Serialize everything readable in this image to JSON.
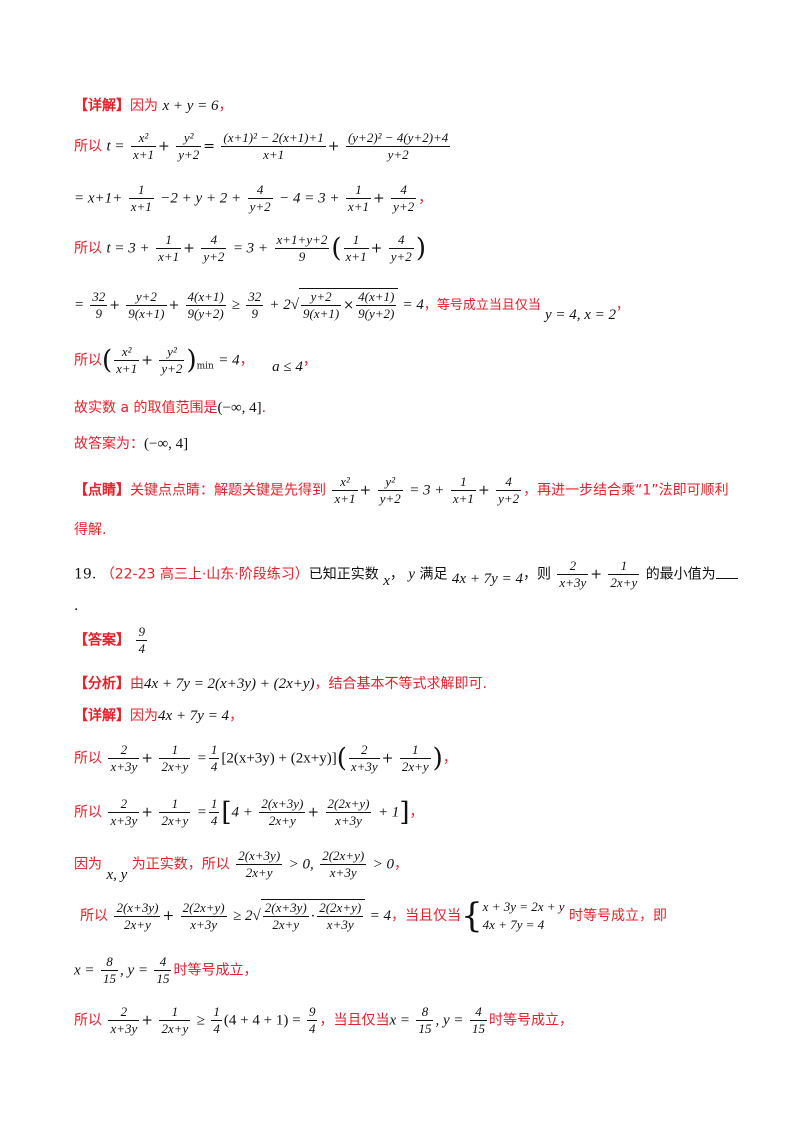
{
  "part1": {
    "detail_tag": "【详解】",
    "because": "因为",
    "cond": "x + y = 6",
    "so": "所以",
    "t_eq": "t =",
    "f1n": "x²",
    "f1d": "x+1",
    "f2n": "y²",
    "f2d": "y+2",
    "f3n": "(x+1)² − 2(x+1)+1",
    "f3d": "x+1",
    "f4n": "(y+2)² − 4(y+2)+4",
    "f4d": "y+2",
    "line3_a": "= x+1+",
    "f5n": "1",
    "f5d": "x+1",
    "line3_b": "−2 + y + 2 +",
    "f6n": "4",
    "f6d": "y+2",
    "line3_c": "− 4 = 3 +",
    "f7n": "1",
    "f7d": "x+1",
    "f8n": "4",
    "f8d": "y+2",
    "line4_a": "t = 3 +",
    "f9n": "1",
    "f9d": "x+1",
    "f10n": "4",
    "f10d": "y+2",
    "line4_b": "= 3 +",
    "f11n": "x+1+y+2",
    "f11d": "9",
    "f12n": "1",
    "f12d": "x+1",
    "f13n": "4",
    "f13d": "y+2",
    "line5_a": "=",
    "f14n": "32",
    "f14d": "9",
    "f15n": "y+2",
    "f15d": "9(x+1)",
    "f16n": "4(x+1)",
    "f16d": "9(y+2)",
    "line5_b": "≥",
    "f17n": "32",
    "f17d": "9",
    "line5_c": "+ 2",
    "f18n": "y+2",
    "f18d": "9(x+1)",
    "f19n": "4(x+1)",
    "f19d": "9(y+2)",
    "line5_d": "= 4",
    "eq_cond": "，等号成立当且仅当",
    "eq_vals": "y = 4, x = 2",
    "line6_min": "= 4",
    "line6_sub": "min",
    "line6_a": "a ≤ 4",
    "range_text": "故实数 a 的取值范围是",
    "range_val": "(−∞, 4]",
    "answer_text": "故答案为：",
    "answer_val": "(−∞, 4]",
    "comment_tag": "【点睛】",
    "comment_text": "关键点点睛：解题关键是先得到",
    "comment_eq": "= 3 +",
    "comment_tail": "，再进一步结合乘“1”法即可顺利",
    "comment_tail2": "得解."
  },
  "q19": {
    "number": "19.",
    "source": "（22-23 高三上·山东·阶段练习）",
    "stem_a": "已知正实数",
    "var_x": "x",
    "var_y": "y",
    "stem_b": "满足",
    "cond": "4x + 7y = 4",
    "stem_c": "，则",
    "g1n": "2",
    "g1d": "x+3y",
    "g2n": "1",
    "g2d": "2x+y",
    "stem_d": "的最小值为",
    "dot": ".",
    "answer_tag": "【答案】",
    "answer_n": "9",
    "answer_d": "4",
    "analysis_tag": "【分析】",
    "analysis_a": "由",
    "analysis_eq": "4x + 7y = 2(x+3y) + (2x+y)",
    "analysis_b": "，结合基本不等式求解即可.",
    "detail_tag": "【详解】",
    "because": "因为",
    "cond2": "4x + 7y = 4",
    "so": "所以",
    "l3_mid": "=",
    "l3_bracket": "[2(x+3y) + (2x+y)]",
    "l4_bracket_a": "4 +",
    "h1n": "2(x+3y)",
    "h1d": "2x+y",
    "h2n": "2(2x+y)",
    "h2d": "x+3y",
    "l4_tail": "+ 1",
    "pos_a": "因为",
    "pos_vars": "x, y",
    "pos_b": "为正实数，所以",
    "pos_c": "> 0,",
    "pos_d": "> 0",
    "l6_ge": "≥ 2",
    "l6_eq": "= 4",
    "l6_cond": "，当且仅当",
    "sys1": "x + 3y = 2x + y",
    "sys2": "4x + 7y = 4",
    "l6_tail": "时等号成立，即",
    "l7_x": "x =",
    "l7_xn": "8",
    "l7_xd": "15",
    "l7_y": ", y =",
    "l7_yn": "4",
    "l7_yd": "15",
    "l7_tail": "时等号成立，",
    "l8_ge": "≥",
    "l8_mid": "(4 + 4 + 1) =",
    "l8_res_n": "9",
    "l8_res_d": "4",
    "l8_cond": "，当且仅当",
    "l8_tail": "时等号成立，",
    "quarter": "1",
    "quarter_d": "4",
    "comma": "，"
  }
}
